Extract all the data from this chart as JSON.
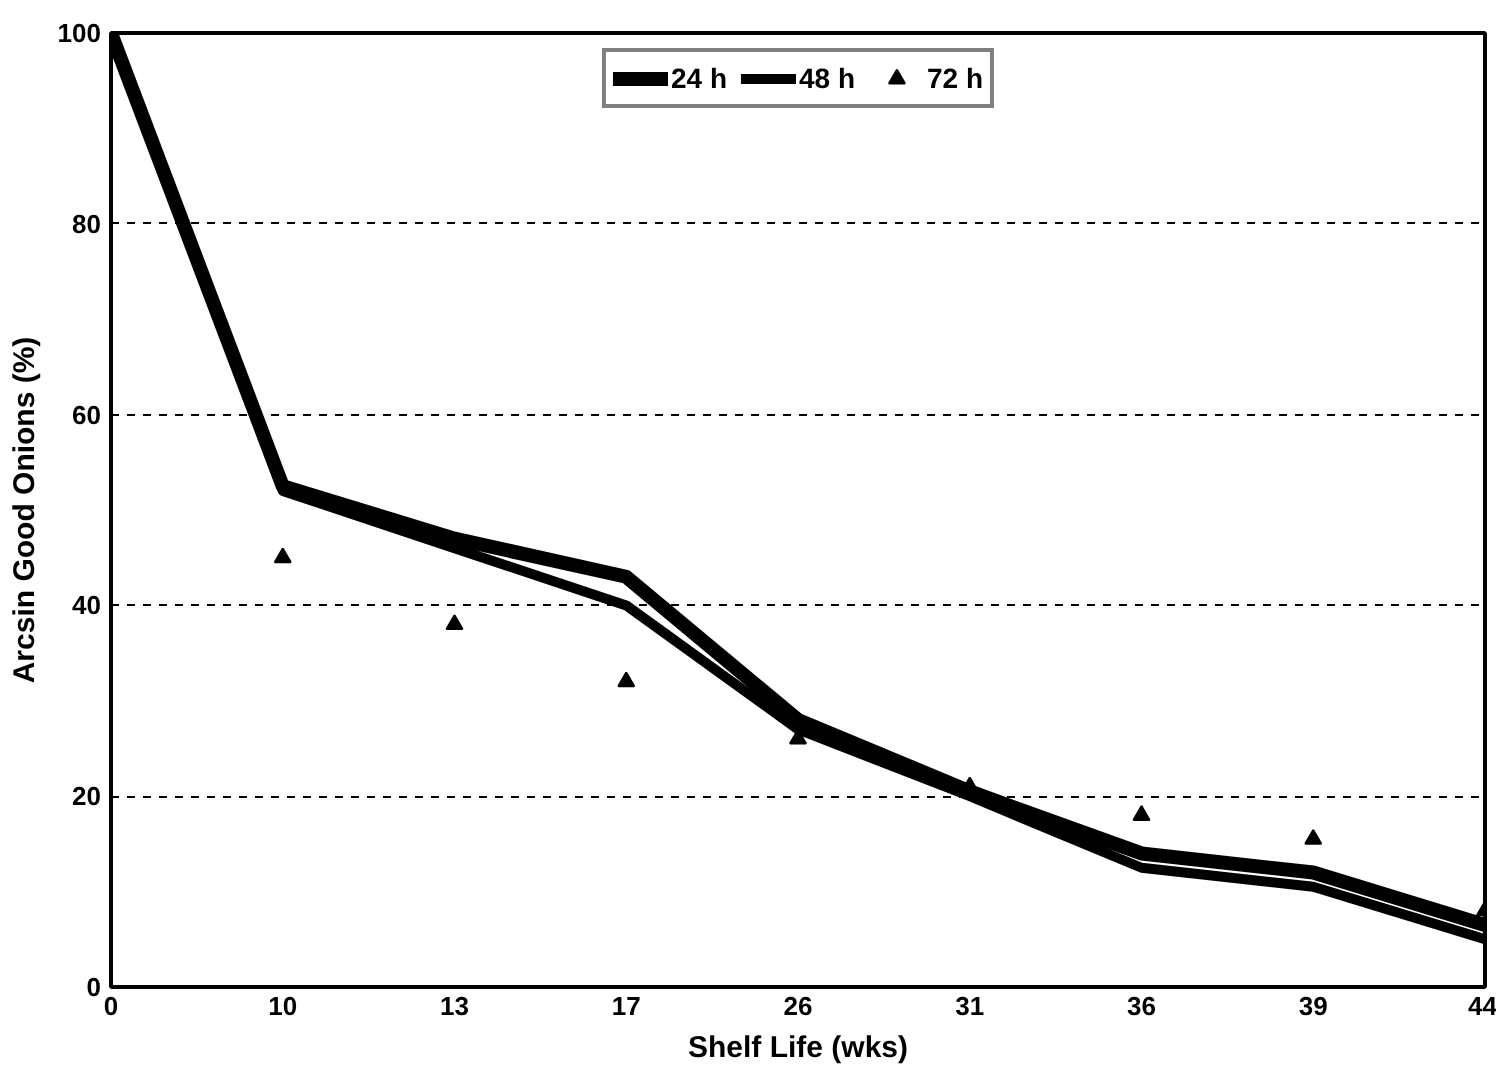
{
  "chart_data": {
    "type": "line",
    "xlabel": "Shelf Life (wks)",
    "ylabel": "Arcsin Good Onions (%)",
    "categories": [
      "0",
      "10",
      "13",
      "17",
      "26",
      "31",
      "36",
      "39",
      "44"
    ],
    "series": [
      {
        "name": "24 h",
        "color": "#000000",
        "values": [
          100,
          52.5,
          47,
          43,
          28,
          20.5,
          14,
          12,
          6.5
        ]
      },
      {
        "name": "48 h",
        "color": "#000000",
        "values": [
          100,
          52,
          46,
          40,
          27,
          20,
          12.5,
          10.5,
          5
        ]
      },
      {
        "name": "72 h",
        "type": "scatter",
        "marker": "triangle",
        "color": "#000000",
        "values": [
          null,
          45,
          38,
          32,
          26,
          21,
          18,
          15.5,
          8
        ]
      }
    ],
    "ylim": [
      0,
      100
    ],
    "yticks": [
      0,
      20,
      40,
      60,
      80,
      100
    ],
    "grid": "y",
    "legend": "top"
  }
}
